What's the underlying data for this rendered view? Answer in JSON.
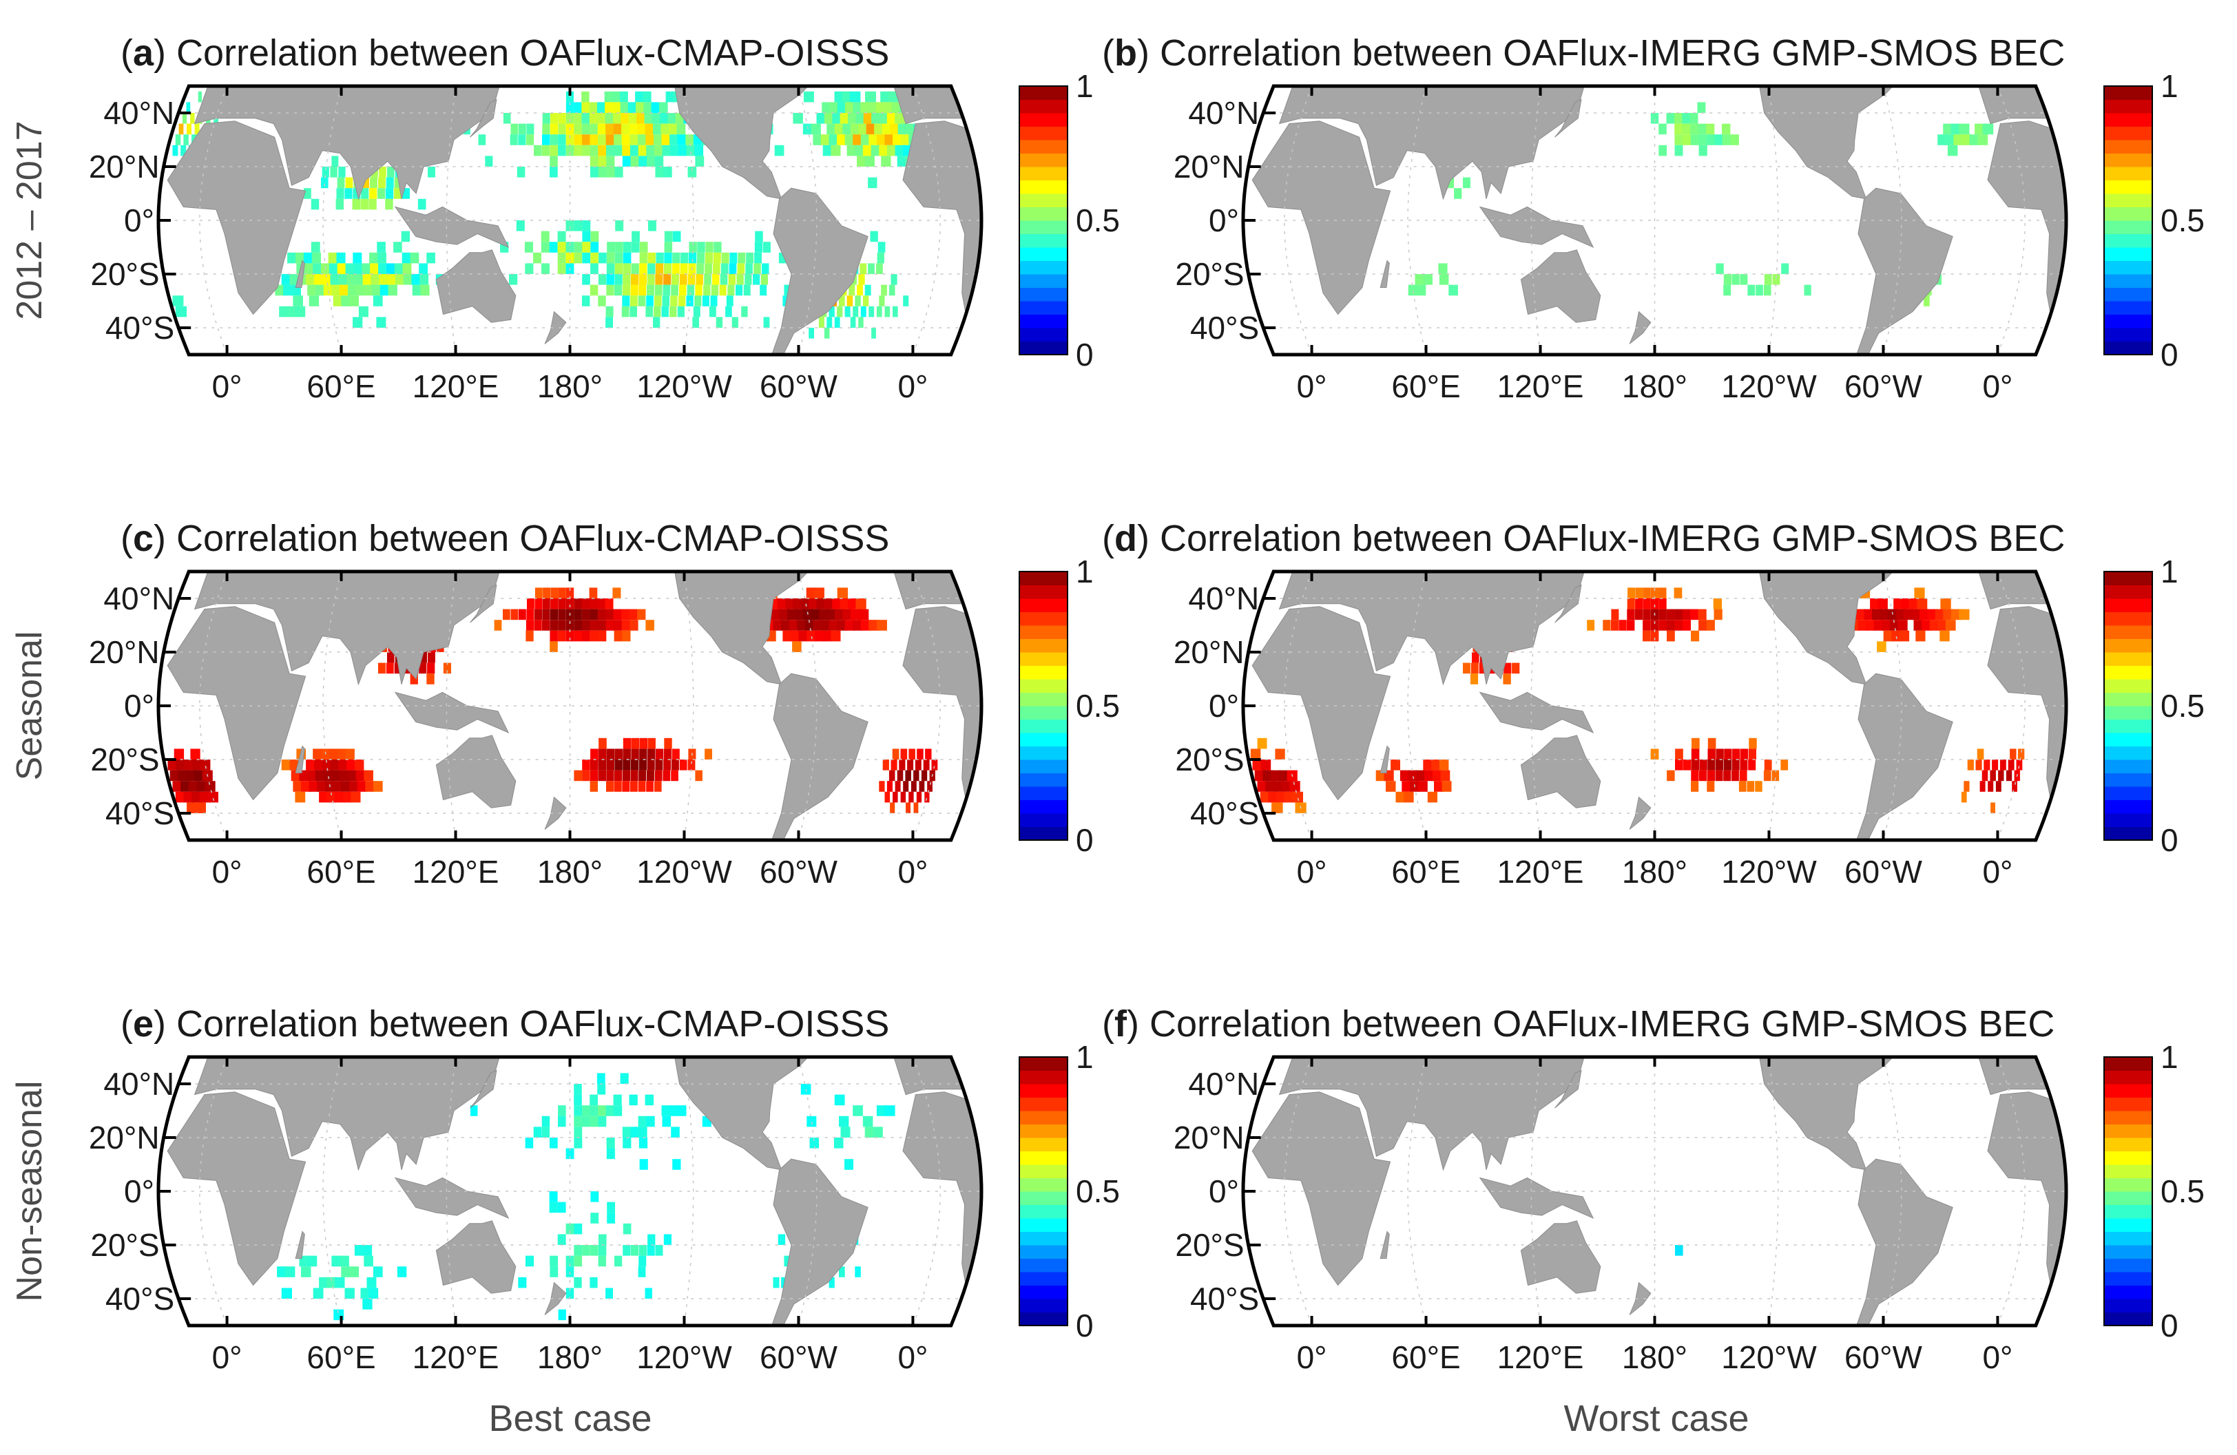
{
  "figure": {
    "row_labels": [
      "2012 – 2017",
      "Seasonal",
      "Non-seasonal"
    ],
    "case_labels": [
      "Best case",
      "Worst case"
    ],
    "lat_ticks": [
      "40°N",
      "20°N",
      "0°",
      "20°S",
      "40°S"
    ],
    "lon_ticks": [
      "0°",
      "60°E",
      "120°E",
      "180°",
      "120°W",
      "60°W",
      "0°"
    ],
    "colorbar": {
      "ticks": [
        "1",
        "0.5",
        "0"
      ],
      "range": [
        0,
        1
      ],
      "colormap": "jet",
      "color_stops": [
        "#00008f",
        "#0000ff",
        "#00ffff",
        "#ffff00",
        "#ff0000",
        "#800000"
      ]
    },
    "map_colors": {
      "land": "#a6a6a6",
      "ocean": "#ffffff",
      "frame": "#000000",
      "grid": "#c8c8c8"
    },
    "panels": [
      {
        "letter": "a",
        "row": 0,
        "col": 0,
        "title": "Correlation between OAFlux-CMAP-OISSS",
        "field": "full",
        "case": "best"
      },
      {
        "letter": "b",
        "row": 0,
        "col": 1,
        "title": "Correlation between OAFlux-IMERG GMP-SMOS BEC",
        "field": "full",
        "case": "worst"
      },
      {
        "letter": "c",
        "row": 1,
        "col": 0,
        "title": "Correlation between OAFlux-CMAP-OISSS",
        "field": "seasonal",
        "case": "best"
      },
      {
        "letter": "d",
        "row": 1,
        "col": 1,
        "title": "Correlation between OAFlux-IMERG GMP-SMOS BEC",
        "field": "seasonal",
        "case": "worst"
      },
      {
        "letter": "e",
        "row": 2,
        "col": 0,
        "title": "Correlation between OAFlux-CMAP-OISSS",
        "field": "nonseasonal",
        "case": "best"
      },
      {
        "letter": "f",
        "row": 2,
        "col": 1,
        "title": "Correlation between OAFlux-IMERG GMP-SMOS BEC",
        "field": "nonseasonal",
        "case": "worst"
      }
    ]
  }
}
